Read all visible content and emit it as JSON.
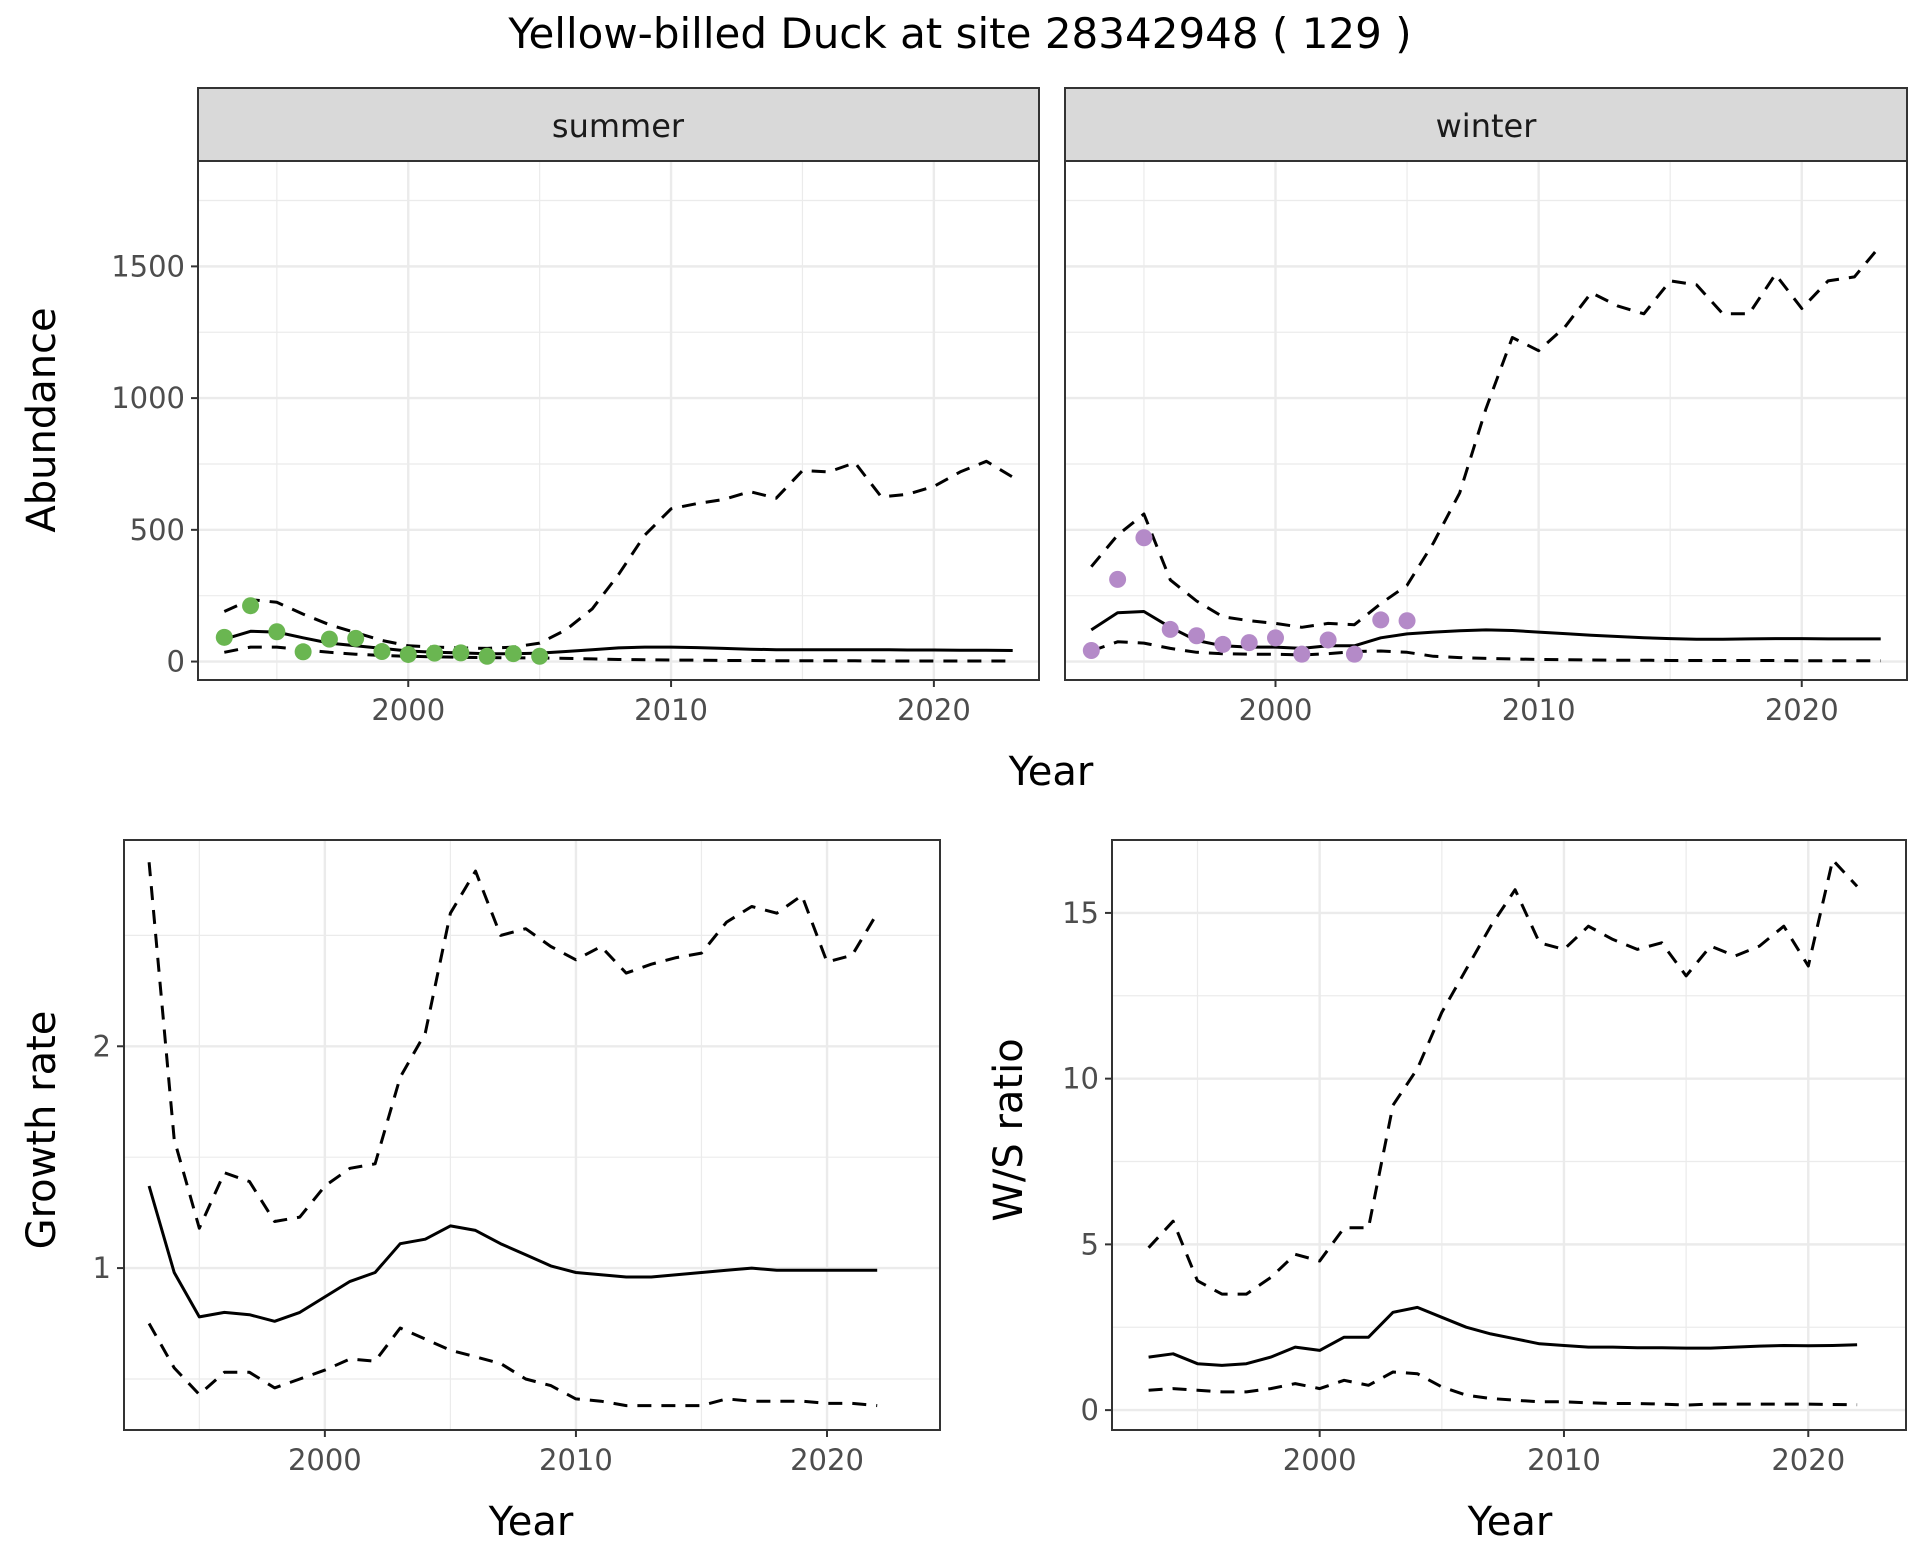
{
  "figure": {
    "title": "Yellow-billed Duck at site 28342948 ( 129 )",
    "top_xlabel": "Year"
  },
  "chart_data": [
    {
      "type": "line",
      "facet": "summer",
      "ylabel": "Abundance",
      "xlabel": "",
      "x_ticks": [
        2000,
        2010,
        2020
      ],
      "y_ticks": [
        0,
        500,
        1000,
        1500
      ],
      "xlim": [
        1992,
        2024
      ],
      "ylim": [
        -70,
        1900
      ],
      "grid": true,
      "point_color": "#6ab651",
      "points": {
        "x": [
          1993,
          1994,
          1995,
          1996,
          1997,
          1998,
          1999,
          2000,
          2001,
          2002,
          2003,
          2004,
          2005
        ],
        "y": [
          92,
          212,
          113,
          37,
          85,
          88,
          38,
          27,
          32,
          33,
          20,
          30,
          20
        ]
      },
      "series": [
        {
          "style": "solid",
          "x": [
            1993,
            1994,
            1995,
            1996,
            1997,
            1998,
            1999,
            2000,
            2001,
            2002,
            2003,
            2004,
            2005,
            2006,
            2007,
            2008,
            2009,
            2010,
            2011,
            2012,
            2013,
            2014,
            2015,
            2016,
            2017,
            2018,
            2019,
            2020,
            2021,
            2022,
            2023
          ],
          "y": [
            85,
            115,
            112,
            90,
            70,
            60,
            50,
            40,
            35,
            33,
            30,
            30,
            32,
            38,
            45,
            52,
            55,
            55,
            53,
            50,
            47,
            45,
            45,
            45,
            45,
            45,
            44,
            44,
            43,
            43,
            42
          ]
        },
        {
          "style": "dashed",
          "x": [
            1993,
            1994,
            1995,
            1996,
            1997,
            1998,
            1999,
            2000,
            2001,
            2002,
            2003,
            2004,
            2005,
            2006,
            2007,
            2008,
            2009,
            2010,
            2011,
            2012,
            2013,
            2014,
            2015,
            2016,
            2017,
            2018,
            2019,
            2020,
            2021,
            2022,
            2023
          ],
          "y": [
            190,
            235,
            225,
            180,
            140,
            110,
            80,
            60,
            55,
            52,
            50,
            55,
            70,
            120,
            200,
            330,
            480,
            580,
            600,
            615,
            645,
            620,
            725,
            720,
            755,
            625,
            635,
            665,
            720,
            760,
            700
          ]
        },
        {
          "style": "dashed",
          "x": [
            1993,
            1994,
            1995,
            1996,
            1997,
            1998,
            1999,
            2000,
            2001,
            2002,
            2003,
            2004,
            2005,
            2006,
            2007,
            2008,
            2009,
            2010,
            2011,
            2012,
            2013,
            2014,
            2015,
            2016,
            2017,
            2018,
            2019,
            2020,
            2021,
            2022,
            2023
          ],
          "y": [
            35,
            55,
            55,
            45,
            35,
            28,
            23,
            20,
            18,
            16,
            15,
            14,
            14,
            12,
            10,
            8,
            7,
            6,
            5,
            4,
            4,
            3,
            3,
            3,
            3,
            2,
            2,
            2,
            2,
            2,
            2
          ]
        }
      ]
    },
    {
      "type": "line",
      "facet": "winter",
      "ylabel": "",
      "xlabel": "",
      "x_ticks": [
        2000,
        2010,
        2020
      ],
      "y_ticks": [],
      "xlim": [
        1992,
        2024
      ],
      "ylim": [
        -70,
        1900
      ],
      "grid": true,
      "point_color": "#b48ac8",
      "points": {
        "x": [
          1993,
          1994,
          1995,
          1996,
          1997,
          1998,
          1999,
          2000,
          2001,
          2002,
          2003,
          2004,
          2005
        ],
        "y": [
          42,
          312,
          470,
          122,
          98,
          65,
          72,
          90,
          28,
          82,
          28,
          158,
          155
        ]
      },
      "series": [
        {
          "style": "solid",
          "x": [
            1993,
            1994,
            1995,
            1996,
            1997,
            1998,
            1999,
            2000,
            2001,
            2002,
            2003,
            2004,
            2005,
            2006,
            2007,
            2008,
            2009,
            2010,
            2011,
            2012,
            2013,
            2014,
            2015,
            2016,
            2017,
            2018,
            2019,
            2020,
            2021,
            2022,
            2023
          ],
          "y": [
            120,
            185,
            190,
            130,
            80,
            60,
            55,
            55,
            50,
            60,
            60,
            90,
            105,
            112,
            117,
            120,
            118,
            112,
            106,
            100,
            95,
            90,
            87,
            85,
            85,
            86,
            87,
            87,
            86,
            86,
            86
          ]
        },
        {
          "style": "dashed",
          "x": [
            1993,
            1994,
            1995,
            1996,
            1997,
            1998,
            1999,
            2000,
            2001,
            2002,
            2003,
            2004,
            2005,
            2006,
            2007,
            2008,
            2009,
            2010,
            2011,
            2012,
            2013,
            2014,
            2015,
            2016,
            2017,
            2018,
            2019,
            2020,
            2021,
            2022,
            2023
          ],
          "y": [
            360,
            480,
            560,
            310,
            230,
            170,
            155,
            145,
            130,
            145,
            140,
            220,
            290,
            450,
            640,
            960,
            1230,
            1180,
            1270,
            1400,
            1350,
            1320,
            1445,
            1430,
            1320,
            1320,
            1470,
            1340,
            1445,
            1460,
            1580
          ]
        },
        {
          "style": "dashed",
          "x": [
            1993,
            1994,
            1995,
            1996,
            1997,
            1998,
            1999,
            2000,
            2001,
            2002,
            2003,
            2004,
            2005,
            2006,
            2007,
            2008,
            2009,
            2010,
            2011,
            2012,
            2013,
            2014,
            2015,
            2016,
            2017,
            2018,
            2019,
            2020,
            2021,
            2022,
            2023
          ],
          "y": [
            40,
            75,
            70,
            50,
            35,
            30,
            28,
            28,
            25,
            30,
            38,
            40,
            35,
            20,
            15,
            12,
            10,
            8,
            7,
            6,
            5,
            5,
            4,
            4,
            4,
            4,
            4,
            3,
            3,
            3,
            3
          ]
        }
      ]
    },
    {
      "type": "line",
      "ylabel": "Growth rate",
      "xlabel": "Year",
      "x_ticks": [
        2000,
        2010,
        2020
      ],
      "y_ticks": [
        1,
        2
      ],
      "y_minor_ticks": [
        0.5,
        1.5,
        2.5
      ],
      "xlim": [
        1992,
        2024.5
      ],
      "ylim": [
        0.27,
        2.93
      ],
      "grid": true,
      "series": [
        {
          "style": "solid",
          "x": [
            1993,
            1994,
            1995,
            1996,
            1997,
            1998,
            1999,
            2000,
            2001,
            2002,
            2003,
            2004,
            2005,
            2006,
            2007,
            2008,
            2009,
            2010,
            2011,
            2012,
            2013,
            2014,
            2015,
            2016,
            2017,
            2018,
            2019,
            2020,
            2021,
            2022
          ],
          "y": [
            1.37,
            0.98,
            0.78,
            0.8,
            0.79,
            0.76,
            0.8,
            0.87,
            0.94,
            0.98,
            1.11,
            1.13,
            1.19,
            1.17,
            1.11,
            1.06,
            1.01,
            0.98,
            0.97,
            0.96,
            0.96,
            0.97,
            0.98,
            0.99,
            1.0,
            0.99,
            0.99,
            0.99,
            0.99,
            0.99
          ]
        },
        {
          "style": "dashed",
          "x": [
            1993,
            1994,
            1995,
            1996,
            1997,
            1998,
            1999,
            2000,
            2001,
            2002,
            2003,
            2004,
            2005,
            2006,
            2007,
            2008,
            2009,
            2010,
            2011,
            2012,
            2013,
            2014,
            2015,
            2016,
            2017,
            2018,
            2019,
            2020,
            2021,
            2022
          ],
          "y": [
            2.83,
            1.58,
            1.18,
            1.43,
            1.39,
            1.21,
            1.23,
            1.37,
            1.45,
            1.47,
            1.86,
            2.06,
            2.6,
            2.79,
            2.5,
            2.53,
            2.45,
            2.39,
            2.45,
            2.33,
            2.37,
            2.4,
            2.42,
            2.56,
            2.63,
            2.6,
            2.68,
            2.38,
            2.41,
            2.6
          ]
        },
        {
          "style": "dashed",
          "x": [
            1993,
            1994,
            1995,
            1996,
            1997,
            1998,
            1999,
            2000,
            2001,
            2002,
            2003,
            2004,
            2005,
            2006,
            2007,
            2008,
            2009,
            2010,
            2011,
            2012,
            2013,
            2014,
            2015,
            2016,
            2017,
            2018,
            2019,
            2020,
            2021,
            2022
          ],
          "y": [
            0.75,
            0.55,
            0.43,
            0.53,
            0.53,
            0.46,
            0.5,
            0.54,
            0.59,
            0.58,
            0.73,
            0.68,
            0.63,
            0.6,
            0.57,
            0.5,
            0.47,
            0.41,
            0.4,
            0.38,
            0.38,
            0.38,
            0.38,
            0.41,
            0.4,
            0.4,
            0.4,
            0.39,
            0.39,
            0.38
          ]
        }
      ]
    },
    {
      "type": "line",
      "ylabel": "W/S ratio",
      "xlabel": "Year",
      "x_ticks": [
        2000,
        2010,
        2020
      ],
      "y_ticks": [
        0,
        5,
        10,
        15
      ],
      "y_minor_ticks": [
        2.5,
        7.5,
        12.5
      ],
      "xlim": [
        1991.5,
        2024
      ],
      "ylim": [
        -0.6,
        17.2
      ],
      "grid": true,
      "series": [
        {
          "style": "solid",
          "x": [
            1993,
            1994,
            1995,
            1996,
            1997,
            1998,
            1999,
            2000,
            2001,
            2002,
            2003,
            2004,
            2005,
            2006,
            2007,
            2008,
            2009,
            2010,
            2011,
            2012,
            2013,
            2014,
            2015,
            2016,
            2017,
            2018,
            2019,
            2020,
            2021,
            2022
          ],
          "y": [
            1.6,
            1.7,
            1.4,
            1.35,
            1.4,
            1.6,
            1.9,
            1.8,
            2.2,
            2.2,
            2.95,
            3.1,
            2.8,
            2.5,
            2.3,
            2.15,
            2.0,
            1.95,
            1.9,
            1.9,
            1.88,
            1.88,
            1.87,
            1.87,
            1.9,
            1.93,
            1.95,
            1.94,
            1.95,
            1.97
          ]
        },
        {
          "style": "dashed",
          "x": [
            1993,
            1994,
            1995,
            1996,
            1997,
            1998,
            1999,
            2000,
            2001,
            2002,
            2003,
            2004,
            2005,
            2006,
            2007,
            2008,
            2009,
            2010,
            2011,
            2012,
            2013,
            2014,
            2015,
            2016,
            2017,
            2018,
            2019,
            2020,
            2021,
            2022
          ],
          "y": [
            4.9,
            5.7,
            3.9,
            3.5,
            3.5,
            4.0,
            4.7,
            4.5,
            5.5,
            5.5,
            9.2,
            10.3,
            12.0,
            13.3,
            14.6,
            15.7,
            14.1,
            13.9,
            14.6,
            14.2,
            13.9,
            14.1,
            13.1,
            14.0,
            13.7,
            14.0,
            14.6,
            13.4,
            16.6,
            15.8
          ]
        },
        {
          "style": "dashed",
          "x": [
            1993,
            1994,
            1995,
            1996,
            1997,
            1998,
            1999,
            2000,
            2001,
            2002,
            2003,
            2004,
            2005,
            2006,
            2007,
            2008,
            2009,
            2010,
            2011,
            2012,
            2013,
            2014,
            2015,
            2016,
            2017,
            2018,
            2019,
            2020,
            2021,
            2022
          ],
          "y": [
            0.6,
            0.65,
            0.6,
            0.55,
            0.55,
            0.65,
            0.8,
            0.65,
            0.9,
            0.75,
            1.15,
            1.1,
            0.7,
            0.45,
            0.35,
            0.3,
            0.25,
            0.25,
            0.22,
            0.2,
            0.2,
            0.18,
            0.15,
            0.18,
            0.18,
            0.18,
            0.18,
            0.18,
            0.17,
            0.16
          ]
        }
      ]
    }
  ]
}
